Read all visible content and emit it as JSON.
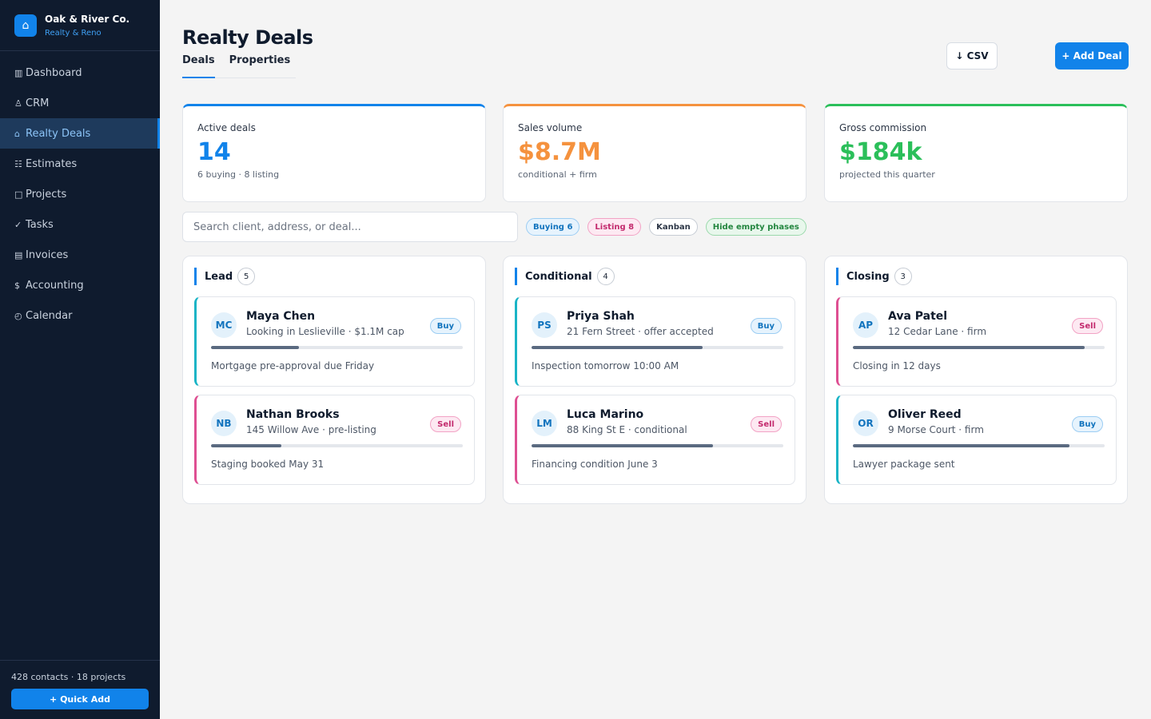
{
  "brand": {
    "name": "Oak & River Co.",
    "subtitle": "Realty & Reno",
    "logo_icon": "house-icon"
  },
  "nav": [
    {
      "id": "dashboard",
      "icon": "▥",
      "label": "Dashboard",
      "active": false
    },
    {
      "id": "crm",
      "icon": "♙",
      "label": "CRM",
      "active": false
    },
    {
      "id": "realty-deals",
      "icon": "⌂",
      "label": "Realty Deals",
      "active": true
    },
    {
      "id": "estimates",
      "icon": "☷",
      "label": "Estimates",
      "active": false
    },
    {
      "id": "projects",
      "icon": "□",
      "label": "Projects",
      "active": false
    },
    {
      "id": "tasks",
      "icon": "✓",
      "label": "Tasks",
      "active": false
    },
    {
      "id": "invoices",
      "icon": "▤",
      "label": "Invoices",
      "active": false
    },
    {
      "id": "accounting",
      "icon": "$",
      "label": "Accounting",
      "active": false
    },
    {
      "id": "calendar",
      "icon": "◴",
      "label": "Calendar",
      "active": false
    }
  ],
  "sidebar_footer": {
    "stats": "428 contacts · 18 projects",
    "quick_add_label": "+ Quick Add"
  },
  "header": {
    "title": "Realty Deals",
    "tabs": [
      {
        "label": "Deals",
        "active": true
      },
      {
        "label": "Properties",
        "active": false
      }
    ],
    "csv_label": "↓ CSV",
    "add_label": "+ Add Deal"
  },
  "kpis": [
    {
      "label": "Active deals",
      "value": "14",
      "sub": "6 buying · 8 listing",
      "color": "#1183ea"
    },
    {
      "label": "Sales volume",
      "value": "$8.7M",
      "sub": "conditional + firm",
      "color": "#f5923e"
    },
    {
      "label": "Gross commission",
      "value": "$184k",
      "sub": "projected this quarter",
      "color": "#2bbf5a"
    }
  ],
  "search": {
    "placeholder": "Search client, address, or deal...",
    "value": ""
  },
  "filters": [
    {
      "label": "Buying 6",
      "kind": "buy"
    },
    {
      "label": "Listing 8",
      "kind": "list"
    },
    {
      "label": "Kanban",
      "kind": "kanban"
    },
    {
      "label": "Hide empty phases",
      "kind": "hide"
    }
  ],
  "columns": [
    {
      "title": "Lead",
      "count": "5",
      "cards": [
        {
          "initials": "MC",
          "name": "Maya Chen",
          "detail": "Looking in Leslieville · $1.1M cap",
          "type": "Buy",
          "progress": 0.35,
          "note": "Mortgage pre-approval due Friday"
        },
        {
          "initials": "NB",
          "name": "Nathan Brooks",
          "detail": "145 Willow Ave · pre-listing",
          "type": "Sell",
          "progress": 0.28,
          "note": "Staging booked May 31"
        }
      ]
    },
    {
      "title": "Conditional",
      "count": "4",
      "cards": [
        {
          "initials": "PS",
          "name": "Priya Shah",
          "detail": "21 Fern Street · offer accepted",
          "type": "Buy",
          "progress": 0.68,
          "note": "Inspection tomorrow 10:00 AM"
        },
        {
          "initials": "LM",
          "name": "Luca Marino",
          "detail": "88 King St E · conditional",
          "type": "Sell",
          "progress": 0.72,
          "note": "Financing condition June 3"
        }
      ]
    },
    {
      "title": "Closing",
      "count": "3",
      "cards": [
        {
          "initials": "AP",
          "name": "Ava Patel",
          "detail": "12 Cedar Lane · firm",
          "type": "Sell",
          "progress": 0.92,
          "note": "Closing in 12 days"
        },
        {
          "initials": "OR",
          "name": "Oliver Reed",
          "detail": "9 Morse Court · firm",
          "type": "Buy",
          "progress": 0.86,
          "note": "Lawyer package sent"
        }
      ]
    }
  ]
}
